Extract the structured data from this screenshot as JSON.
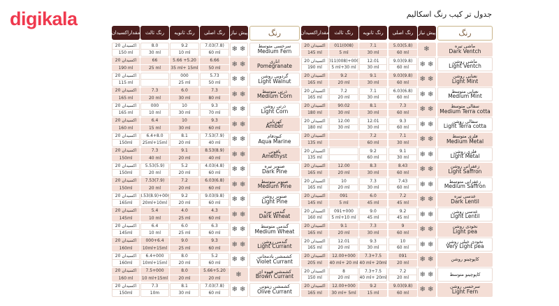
{
  "brand": {
    "logo": "digikala",
    "color": "#ef394e"
  },
  "title": "جدول تر کیب رنگ اسکالیم",
  "headers": {
    "color": "رنگ",
    "pre": "پیش نیاز",
    "primary": "رنگ  اصلی",
    "secondary": "رنگ ثانویه",
    "tertiary": "رنگ ثالث",
    "oxidant": "مقداراکسیدان"
  },
  "oxidant_label": "اکسیدان 20",
  "pre_icon": "snowflake-icon",
  "colors": {
    "header_bg": "#4b1d1c",
    "row_alt": "#f4ded6",
    "color_header_border": "#c9b48a"
  },
  "tables": [
    {
      "rows": [
        {
          "fa": "سرخسی متوسط",
          "en": "Medium Fern",
          "pre": 2,
          "primary": [
            "7.03(7.8)",
            "60 ml"
          ],
          "secondary": [
            "9.2",
            "10 ml"
          ],
          "tertiary": [
            "8.0",
            "30 ml"
          ],
          "oxidant": "150 ml"
        },
        {
          "fa": "اناری",
          "en": "Pomegranate",
          "pre": 2,
          "primary": [
            "6.66",
            "50 ml"
          ],
          "secondary": [
            "5.66 +5.20",
            "35 ml+ 15ml"
          ],
          "tertiary": [
            "66",
            "25 ml"
          ],
          "oxidant": "190 ml"
        },
        {
          "fa": "گردویی روشن",
          "en": "Light Walnut",
          "pre": 2,
          "primary": [
            "5.73",
            "50 ml"
          ],
          "secondary": [
            "000",
            "25 ml"
          ],
          "tertiary": [
            "",
            ""
          ],
          "oxidant": "115 ml"
        },
        {
          "fa": "ذرتی متوسط",
          "en": "Medium Corn",
          "pre": 2,
          "primary": [
            "7.3",
            "80 ml"
          ],
          "secondary": [
            "6.0",
            "30 ml"
          ],
          "tertiary": [
            "7.3",
            "20 ml"
          ],
          "oxidant": "165 ml"
        },
        {
          "fa": "ذرتی روشن",
          "en": "Light Corn",
          "pre": 2,
          "primary": [
            "9.3",
            "70 ml"
          ],
          "secondary": [
            "10",
            "30 ml"
          ],
          "tertiary": [
            "000",
            "10 ml"
          ],
          "oxidant": "165 ml"
        },
        {
          "fa": "کهربایی",
          "en": "Amber",
          "pre": 2,
          "primary": [
            "9.3",
            "60 ml"
          ],
          "secondary": [
            "10",
            "30 ml"
          ],
          "tertiary": [
            "6.4",
            "15 ml"
          ],
          "oxidant": "160 ml"
        },
        {
          "fa": "کبودفام",
          "en": "Aqua Marine",
          "pre": 2,
          "primary": [
            "7.53(7.9)",
            "40 ml"
          ],
          "secondary": [
            "8.1",
            "20 ml"
          ],
          "tertiary": [
            "6.4+8.0",
            "25ml+15ml"
          ],
          "oxidant": "150ml"
        },
        {
          "fa": "یاقوتی",
          "en": "Amethyst",
          "pre": 2,
          "primary": [
            "8.53(8.9)",
            "40 ml"
          ],
          "secondary": [
            "9.1",
            "20 ml"
          ],
          "tertiary": [
            "7.3",
            "40 ml"
          ],
          "oxidant": "150ml"
        },
        {
          "fa": "صنوبر تیره",
          "en": "Dark Pine",
          "pre": 2,
          "primary": [
            "4.03(4.8)",
            "60 ml"
          ],
          "secondary": [
            "5.2",
            "20 ml"
          ],
          "tertiary": [
            "5.53(5.9)",
            "20 ml"
          ],
          "oxidant": "150ml"
        },
        {
          "fa": "صنوبر متوسط",
          "en": "Medium Pine",
          "pre": 2,
          "primary": [
            "6.03(6.8)",
            "60 ml"
          ],
          "secondary": [
            "7.2",
            "20 ml"
          ],
          "tertiary": [
            "7.53(7.9)",
            "20 ml"
          ],
          "oxidant": "150ml"
        },
        {
          "fa": "صنوبر روشن",
          "en": "Light Pine",
          "pre": 2,
          "primary": [
            "9.03(9.8)",
            "60 ml"
          ],
          "secondary": [
            "9.2",
            "20 ml"
          ],
          "tertiary": [
            "8.53(8.9)+000",
            "20ml+10ml"
          ],
          "oxidant": "165ml"
        },
        {
          "fa": "گندمی تیره",
          "en": "Dark Wheat",
          "pre": 2,
          "primary": [
            "4.3",
            "60 ml"
          ],
          "secondary": [
            "4.0",
            "25 ml"
          ],
          "tertiary": [
            "5.4",
            "10 ml"
          ],
          "oxidant": "145ml"
        },
        {
          "fa": "گندمی متوسط",
          "en": "Medium Wheat",
          "pre": 2,
          "primary": [
            "6.3",
            "60 ml"
          ],
          "secondary": [
            "6.0",
            "25 ml"
          ],
          "tertiary": [
            "6.4",
            "10 ml"
          ],
          "oxidant": "145ml"
        },
        {
          "fa": "گندمی روشن",
          "en": "Light Currant",
          "pre": 2,
          "primary": [
            "9.3",
            "60 ml"
          ],
          "secondary": [
            "9.0",
            "25 ml"
          ],
          "tertiary": [
            "000+6.4",
            "10ml+15ml"
          ],
          "oxidant": "160ml"
        },
        {
          "fa": "کشمشی بادمجانی",
          "en": "Violet Currant",
          "pre": 2,
          "primary": [
            "5.2",
            "60 ml"
          ],
          "secondary": [
            "8.0",
            "20 ml"
          ],
          "tertiary": [
            "6.4+000",
            "10ml+15ml"
          ],
          "oxidant": "160ml"
        },
        {
          "fa": "کشمشی قهوه ای",
          "en": "Brown Currant",
          "pre": 1,
          "primary": [
            "5.66+5.20",
            "20  ml"
          ],
          "secondary": [
            "8.0",
            "20 ml"
          ],
          "tertiary": [
            "7.5+000",
            "10 ml+15ml"
          ],
          "oxidant": "160 ml"
        },
        {
          "fa": "کشمشی زیتونی",
          "en": "Olive Currant",
          "pre": 2,
          "primary": [
            "7.03(7.8)",
            "60 ml"
          ],
          "secondary": [
            "8.1",
            "30 ml"
          ],
          "tertiary": [
            "7.3",
            "10m"
          ],
          "oxidant": "150ml"
        }
      ]
    },
    {
      "rows": [
        {
          "fa": "ماشی تیره",
          "en": "Dark Ventch",
          "pre": 1,
          "primary": [
            "5.03(5.8)",
            "60 ml"
          ],
          "secondary": [
            "7.1",
            "30 ml"
          ],
          "tertiary": [
            "011(008)",
            "5 ml"
          ],
          "oxidant": "145 ml"
        },
        {
          "fa": "ماشی روشن",
          "en": "Light Ventch",
          "pre": 2,
          "primary": [
            "9.03(9.8)",
            "60 ml"
          ],
          "secondary": [
            "12.01",
            "30 ml"
          ],
          "tertiary": [
            "011(008)+000",
            "5 ml+30 ml"
          ],
          "oxidant": "190 ml"
        },
        {
          "fa": "نعنایی روشن",
          "en": "Light Mint",
          "pre": 2,
          "primary": [
            "9.03(9.8)",
            "60 ml"
          ],
          "secondary": [
            "9.1",
            "30 ml"
          ],
          "tertiary": [
            "9.2",
            "20 ml"
          ],
          "oxidant": "165 ml"
        },
        {
          "fa": "نعنایی متوسط",
          "en": "Medium Mint",
          "pre": 2,
          "primary": [
            "6.03(6.8)",
            "60 ml"
          ],
          "secondary": [
            "7.1",
            "30 ml"
          ],
          "tertiary": [
            "7.2",
            "20 ml"
          ],
          "oxidant": "165 ml"
        },
        {
          "fa": "سفالی متوسط",
          "en": "Medium Terra cotta",
          "pre": 2,
          "primary": [
            "7.3",
            "60 ml"
          ],
          "secondary": [
            "8.1",
            "30 ml"
          ],
          "tertiary": [
            "90.02",
            "30 ml"
          ],
          "oxidant": "180 ml"
        },
        {
          "fa": "سفالی روشن",
          "en": "Light Terra cotta",
          "pre": 2,
          "primary": [
            "9.3",
            "60 ml"
          ],
          "secondary": [
            "12.01",
            "30 ml"
          ],
          "tertiary": [
            "12.00",
            "30 ml"
          ],
          "oxidant": "180 ml"
        },
        {
          "fa": "فلزی متوسط",
          "en": "Medium Metal",
          "pre": 2,
          "primary": [
            "7.1",
            "30 ml"
          ],
          "secondary": [
            "7.2",
            "60 ml"
          ],
          "tertiary": [
            "",
            ""
          ],
          "oxidant": "135 ml"
        },
        {
          "fa": "فلزی روشن",
          "en": "Light  Metal",
          "pre": 2,
          "primary": [
            "9.1",
            "30 ml"
          ],
          "secondary": [
            "9.2",
            "60 ml"
          ],
          "tertiary": [
            "",
            ""
          ],
          "oxidant": "135 ml"
        },
        {
          "fa": "زعفرانی روشن",
          "en": "Light Saffron",
          "pre": 2,
          "primary": [
            "8.43",
            "60 ml"
          ],
          "secondary": [
            "8.3",
            "30 ml"
          ],
          "tertiary": [
            "12.00",
            "20 ml"
          ],
          "oxidant": "165 ml"
        },
        {
          "fa": "زعفرانی متوسط",
          "en": "Medium Saffron",
          "pre": 2,
          "primary": [
            "7.43",
            "60 ml"
          ],
          "secondary": [
            "7.3",
            "30 ml"
          ],
          "tertiary": [
            "10",
            "20 ml"
          ],
          "oxidant": "165 ml"
        },
        {
          "fa": "عدسی تیره",
          "en": "Dark Lentil",
          "pre": 2,
          "primary": [
            "7.2",
            "45 ml"
          ],
          "secondary": [
            "6.0",
            "45 ml"
          ],
          "tertiary": [
            "091",
            "5 ml"
          ],
          "oxidant": "145 ml"
        },
        {
          "fa": "عدسی روشن",
          "en": "Light Lentil",
          "pre": 2,
          "primary": [
            "9.2",
            "45 ml"
          ],
          "secondary": [
            "9.0",
            "45 ml"
          ],
          "tertiary": [
            "091+000",
            "5 ml+10 ml"
          ],
          "oxidant": "160 ml"
        },
        {
          "fa": "نخودی روشن",
          "en": "Light pea",
          "pre": 2,
          "primary": [
            "9",
            "60 ml"
          ],
          "secondary": [
            "7.3",
            "30 ml"
          ],
          "tertiary": [
            "9.1",
            "20 ml"
          ],
          "oxidant": "165 ml"
        },
        {
          "fa": "نخودی خیلی روشن",
          "en": "Very Light pea",
          "pre": 2,
          "primary": [
            "10",
            "60 ml"
          ],
          "secondary": [
            "9.3",
            "30 ml"
          ],
          "tertiary": [
            "12.01",
            "20 ml"
          ],
          "oxidant": "165 ml"
        },
        {
          "fa": "کاپوچینو روشن",
          "en": "",
          "pre": 2,
          "primary": [
            "091",
            "20 ml"
          ],
          "secondary": [
            "7.3+7.5",
            "40 ml+ 20ml"
          ],
          "tertiary": [
            "12.00+000",
            "40 ml+ 20 ml"
          ],
          "oxidant": "205 ml"
        },
        {
          "fa": "کاپوچینو متوسط",
          "en": "",
          "pre": 2,
          "primary": [
            "7.2",
            "20 ml"
          ],
          "secondary": [
            "7.3+7.5",
            "40 ml+ 20ml"
          ],
          "tertiary": [
            "8",
            "20 ml"
          ],
          "oxidant": "150 ml"
        },
        {
          "fa": "سرخسی روشن",
          "en": "Light Fern",
          "pre": 2,
          "primary": [
            "9.03(9.8)",
            "60 ml"
          ],
          "secondary": [
            "9.2",
            "15 ml"
          ],
          "tertiary": [
            "12.00+000",
            "30 ml+ 5ml"
          ],
          "oxidant": "165 ml"
        }
      ]
    }
  ]
}
